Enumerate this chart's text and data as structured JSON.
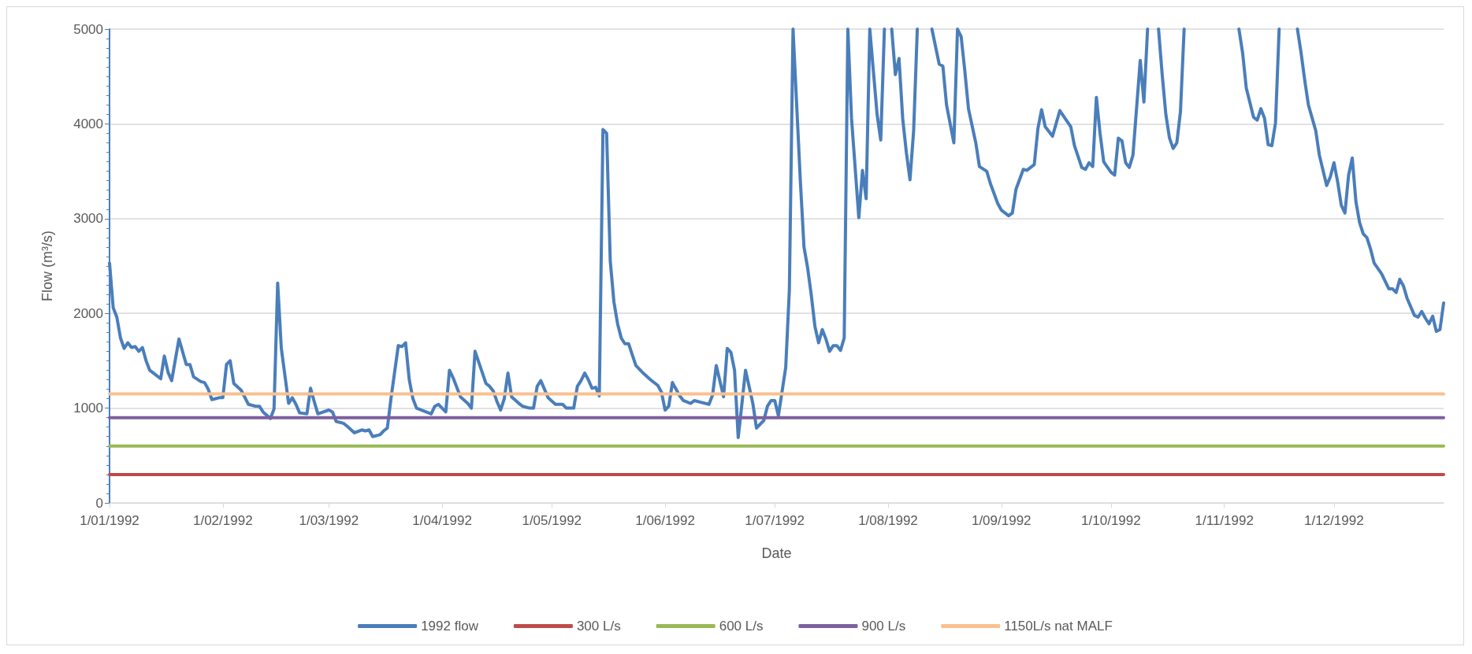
{
  "chart_data": {
    "type": "line",
    "xlabel": "Date",
    "ylabel": "Flow (m³/s)",
    "xlim": [
      "1992-01-01",
      "1992-12-31"
    ],
    "ylim": [
      0,
      5000
    ],
    "yticks": [
      0,
      1000,
      2000,
      3000,
      4000,
      5000
    ],
    "xticks": [
      {
        "value": "1992-01-01",
        "label": "1/01/1992"
      },
      {
        "value": "1992-02-01",
        "label": "1/02/1992"
      },
      {
        "value": "1992-03-01",
        "label": "1/03/1992"
      },
      {
        "value": "1992-04-01",
        "label": "1/04/1992"
      },
      {
        "value": "1992-05-01",
        "label": "1/05/1992"
      },
      {
        "value": "1992-06-01",
        "label": "1/06/1992"
      },
      {
        "value": "1992-07-01",
        "label": "1/07/1992"
      },
      {
        "value": "1992-08-01",
        "label": "1/08/1992"
      },
      {
        "value": "1992-09-01",
        "label": "1/09/1992"
      },
      {
        "value": "1992-10-01",
        "label": "1/10/1992"
      },
      {
        "value": "1992-11-01",
        "label": "1/11/1992"
      },
      {
        "value": "1992-12-01",
        "label": "1/12/1992"
      }
    ],
    "grid": "y",
    "legend": "bottom",
    "marker": "none",
    "line_style": "solid",
    "series": [
      {
        "name": "1992 flow",
        "color": "#4a7ebb",
        "x": [
          "1992-01-01",
          "1992-01-02",
          "1992-01-03",
          "1992-01-04",
          "1992-01-05",
          "1992-01-06",
          "1992-01-07",
          "1992-01-08",
          "1992-01-09",
          "1992-01-10",
          "1992-01-11",
          "1992-01-12",
          "1992-01-15",
          "1992-01-16",
          "1992-01-17",
          "1992-01-18",
          "1992-01-20",
          "1992-01-22",
          "1992-01-23",
          "1992-01-24",
          "1992-01-26",
          "1992-01-27",
          "1992-01-28",
          "1992-01-29",
          "1992-01-31",
          "1992-02-01",
          "1992-02-02",
          "1992-02-03",
          "1992-02-04",
          "1992-02-06",
          "1992-02-08",
          "1992-02-10",
          "1992-02-11",
          "1992-02-12",
          "1992-02-14",
          "1992-02-15",
          "1992-02-16",
          "1992-02-17",
          "1992-02-19",
          "1992-02-20",
          "1992-02-21",
          "1992-02-22",
          "1992-02-24",
          "1992-02-25",
          "1992-02-26",
          "1992-02-27",
          "1992-03-01",
          "1992-03-02",
          "1992-03-03",
          "1992-03-05",
          "1992-03-06",
          "1992-03-08",
          "1992-03-10",
          "1992-03-11",
          "1992-03-12",
          "1992-03-13",
          "1992-03-15",
          "1992-03-16",
          "1992-03-17",
          "1992-03-18",
          "1992-03-20",
          "1992-03-21",
          "1992-03-22",
          "1992-03-23",
          "1992-03-24",
          "1992-03-25",
          "1992-03-29",
          "1992-03-30",
          "1992-03-31",
          "1992-04-02",
          "1992-04-03",
          "1992-04-04",
          "1992-04-06",
          "1992-04-08",
          "1992-04-09",
          "1992-04-10",
          "1992-04-13",
          "1992-04-14",
          "1992-04-15",
          "1992-04-16",
          "1992-04-17",
          "1992-04-18",
          "1992-04-19",
          "1992-04-20",
          "1992-04-22",
          "1992-04-23",
          "1992-04-25",
          "1992-04-26",
          "1992-04-27",
          "1992-04-28",
          "1992-04-30",
          "1992-05-02",
          "1992-05-04",
          "1992-05-05",
          "1992-05-07",
          "1992-05-08",
          "1992-05-09",
          "1992-05-10",
          "1992-05-11",
          "1992-05-12",
          "1992-05-13",
          "1992-05-14",
          "1992-05-15",
          "1992-05-16",
          "1992-05-17",
          "1992-05-18",
          "1992-05-19",
          "1992-05-20",
          "1992-05-21",
          "1992-05-22",
          "1992-05-24",
          "1992-05-26",
          "1992-05-28",
          "1992-05-30",
          "1992-05-31",
          "1992-06-01",
          "1992-06-02",
          "1992-06-03",
          "1992-06-05",
          "1992-06-06",
          "1992-06-08",
          "1992-06-09",
          "1992-06-11",
          "1992-06-13",
          "1992-06-14",
          "1992-06-15",
          "1992-06-17",
          "1992-06-18",
          "1992-06-19",
          "1992-06-20",
          "1992-06-21",
          "1992-06-22",
          "1992-06-23",
          "1992-06-25",
          "1992-06-26",
          "1992-06-28",
          "1992-06-29",
          "1992-06-30",
          "1992-07-01",
          "1992-07-02",
          "1992-07-04",
          "1992-07-05",
          "1992-07-06",
          "1992-07-08",
          "1992-07-09",
          "1992-07-10",
          "1992-07-11",
          "1992-07-12",
          "1992-07-13",
          "1992-07-14",
          "1992-07-15",
          "1992-07-16",
          "1992-07-17",
          "1992-07-18",
          "1992-07-19",
          "1992-07-20",
          "1992-07-21",
          "1992-07-22",
          "1992-07-24",
          "1992-07-25",
          "1992-07-26",
          "1992-07-27",
          "1992-07-29",
          "1992-07-30",
          "1992-07-31",
          "1992-08-01",
          "1992-08-02",
          "1992-08-03",
          "1992-08-04",
          "1992-08-05",
          "1992-08-06",
          "1992-08-07",
          "1992-08-08",
          "1992-08-09",
          "1992-08-11",
          "1992-08-13",
          "1992-08-15",
          "1992-08-16",
          "1992-08-17",
          "1992-08-19",
          "1992-08-20",
          "1992-08-21",
          "1992-08-22",
          "1992-08-23",
          "1992-08-25",
          "1992-08-26",
          "1992-08-28",
          "1992-08-29",
          "1992-08-31",
          "1992-09-01",
          "1992-09-03",
          "1992-09-04",
          "1992-09-05",
          "1992-09-07",
          "1992-09-08",
          "1992-09-10",
          "1992-09-11",
          "1992-09-12",
          "1992-09-13",
          "1992-09-15",
          "1992-09-17",
          "1992-09-20",
          "1992-09-21",
          "1992-09-23",
          "1992-09-24",
          "1992-09-25",
          "1992-09-26",
          "1992-09-27",
          "1992-09-28",
          "1992-09-29",
          "1992-10-01",
          "1992-10-02",
          "1992-10-03",
          "1992-10-04",
          "1992-10-05",
          "1992-10-06",
          "1992-10-07",
          "1992-10-09",
          "1992-10-10",
          "1992-10-11",
          "1992-10-12",
          "1992-10-14",
          "1992-10-15",
          "1992-10-16",
          "1992-10-17",
          "1992-10-18",
          "1992-10-19",
          "1992-10-20",
          "1992-10-21",
          "1992-10-27",
          "1992-11-05",
          "1992-11-06",
          "1992-11-07",
          "1992-11-09",
          "1992-11-10",
          "1992-11-11",
          "1992-11-12",
          "1992-11-13",
          "1992-11-14",
          "1992-11-15",
          "1992-11-16",
          "1992-11-18",
          "1992-11-21",
          "1992-11-22",
          "1992-11-23",
          "1992-11-24",
          "1992-11-26",
          "1992-11-27",
          "1992-11-29",
          "1992-11-30",
          "1992-12-01",
          "1992-12-02",
          "1992-12-03",
          "1992-12-04",
          "1992-12-05",
          "1992-12-06",
          "1992-12-07",
          "1992-12-08",
          "1992-12-09",
          "1992-12-10",
          "1992-12-11",
          "1992-12-12",
          "1992-12-14",
          "1992-12-16",
          "1992-12-17",
          "1992-12-18",
          "1992-12-19",
          "1992-12-20",
          "1992-12-21",
          "1992-12-23",
          "1992-12-24",
          "1992-12-25",
          "1992-12-26",
          "1992-12-27",
          "1992-12-28",
          "1992-12-29",
          "1992-12-30",
          "1992-12-31"
        ],
        "values": [
          2530,
          2060,
          1960,
          1740,
          1630,
          1690,
          1640,
          1650,
          1600,
          1640,
          1500,
          1400,
          1310,
          1550,
          1380,
          1290,
          1730,
          1460,
          1460,
          1330,
          1280,
          1270,
          1200,
          1090,
          1110,
          1110,
          1460,
          1500,
          1260,
          1190,
          1040,
          1020,
          1020,
          960,
          890,
          990,
          2320,
          1630,
          1050,
          1110,
          1040,
          950,
          940,
          1210,
          1070,
          940,
          980,
          960,
          860,
          840,
          810,
          740,
          770,
          760,
          770,
          700,
          720,
          760,
          790,
          1100,
          1660,
          1650,
          1690,
          1300,
          1100,
          1000,
          940,
          1020,
          1040,
          960,
          1400,
          1320,
          1120,
          1050,
          1000,
          1600,
          1260,
          1230,
          1180,
          1070,
          980,
          1100,
          1370,
          1120,
          1050,
          1020,
          1000,
          1000,
          1230,
          1290,
          1110,
          1040,
          1040,
          1000,
          1000,
          1230,
          1290,
          1370,
          1300,
          1210,
          1220,
          1130,
          3940,
          3900,
          2550,
          2120,
          1890,
          1740,
          1680,
          1680,
          1450,
          1370,
          1300,
          1240,
          1170,
          980,
          1020,
          1270,
          1130,
          1080,
          1050,
          1080,
          1060,
          1040,
          1140,
          1450,
          1120,
          1630,
          1590,
          1400,
          690,
          1040,
          1400,
          1050,
          790,
          870,
          1020,
          1080,
          1080,
          920,
          1430,
          2250,
          5000,
          3400,
          2700,
          2480,
          2190,
          1860,
          1690,
          1830,
          1730,
          1600,
          1660,
          1660,
          1610,
          1740,
          5000,
          4060,
          3010,
          3510,
          3210,
          5000,
          4100,
          3830,
          5000,
          null,
          5000,
          4520,
          4690,
          4060,
          3700,
          3410,
          3930,
          5000,
          null,
          5000,
          4630,
          4610,
          4200,
          3800,
          5000,
          4920,
          4560,
          4160,
          3800,
          3550,
          3500,
          3370,
          3160,
          3090,
          3030,
          3060,
          3310,
          3520,
          3510,
          3570,
          3950,
          4150,
          3970,
          3870,
          4140,
          3970,
          3770,
          3540,
          3520,
          3590,
          3550,
          4280,
          3900,
          3600,
          3490,
          3460,
          3850,
          3820,
          3590,
          3540,
          3670,
          4670,
          4230,
          5000,
          null,
          5000,
          4520,
          4100,
          3850,
          3740,
          3800,
          4130,
          5000,
          null,
          5000,
          4750,
          4380,
          4070,
          4040,
          4160,
          4060,
          3780,
          3770,
          4010,
          5000,
          null,
          5000,
          4750,
          4460,
          4200,
          3930,
          3670,
          3350,
          3440,
          3590,
          3390,
          3140,
          3060,
          3460,
          3640,
          3180,
          2960,
          2840,
          2800,
          2680,
          2530,
          2420,
          2260,
          2260,
          2220,
          2360,
          2290,
          2160,
          1980,
          1960,
          2020,
          1950,
          1890,
          1970,
          1810,
          1830,
          2110
        ]
      },
      {
        "name": "300 L/s",
        "color": "#be4b48",
        "x": [
          "1992-01-01",
          "1992-12-31"
        ],
        "values": [
          300,
          300
        ]
      },
      {
        "name": "600 L/s",
        "color": "#98b954",
        "x": [
          "1992-01-01",
          "1992-12-31"
        ],
        "values": [
          600,
          600
        ]
      },
      {
        "name": "900 L/s",
        "color": "#7d60a0",
        "x": [
          "1992-01-01",
          "1992-12-31"
        ],
        "values": [
          900,
          900
        ]
      },
      {
        "name": "1150L/s nat MALF",
        "color": "#f9c08f",
        "x": [
          "1992-01-01",
          "1992-12-31"
        ],
        "values": [
          1150,
          1150
        ]
      }
    ]
  }
}
